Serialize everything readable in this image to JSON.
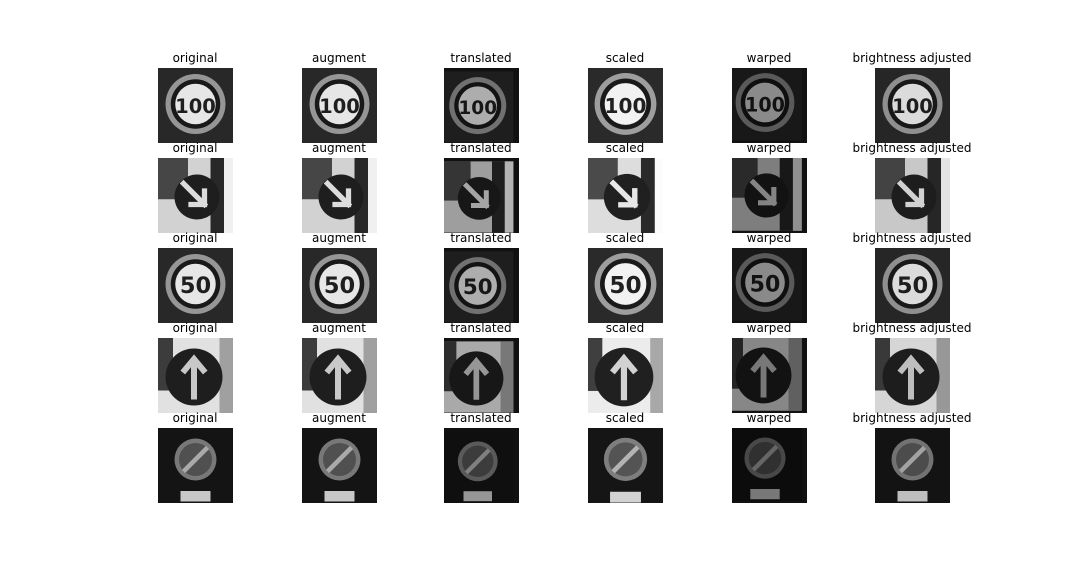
{
  "columns": [
    "original",
    "augment",
    "translated",
    "scaled",
    "warped",
    "brightness adjusted"
  ],
  "rows": [
    {
      "sign": "speed-limit-100",
      "text": "100"
    },
    {
      "sign": "keep-right-arrow",
      "text": ""
    },
    {
      "sign": "speed-limit-50",
      "text": "50"
    },
    {
      "sign": "ahead-only-arrow",
      "text": ""
    },
    {
      "sign": "end-of-no-passing",
      "text": ""
    }
  ],
  "colors": {
    "background": "#ffffff",
    "title": "#000000"
  }
}
